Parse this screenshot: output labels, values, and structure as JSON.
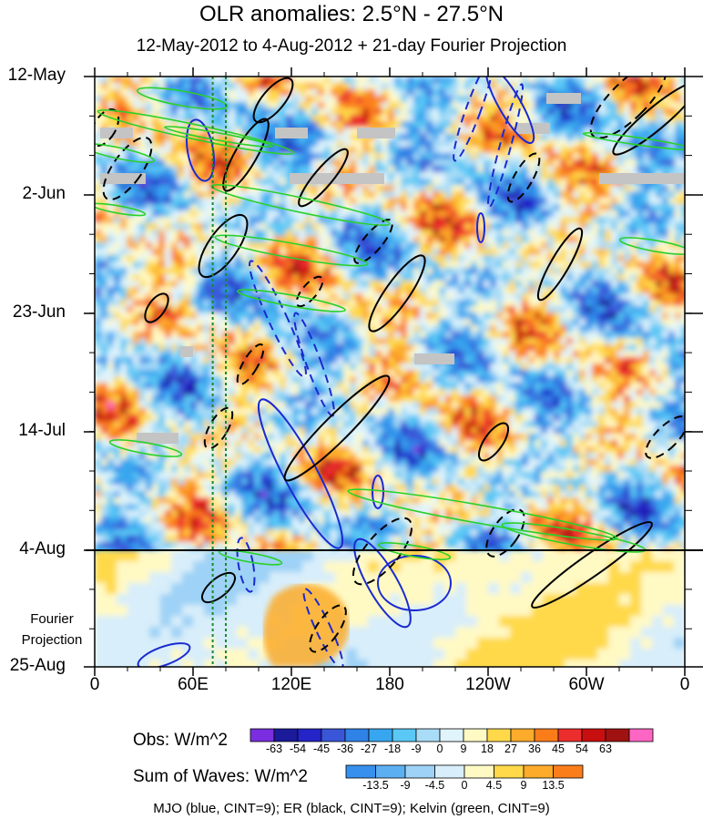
{
  "title": "OLR anomalies: 2.5°N - 27.5°N",
  "subtitle": "12-May-2012 to 4-Aug-2012 + 21-day Fourier Projection",
  "projection_label": [
    "Fourier",
    "Projection"
  ],
  "colorbar_obs": {
    "title": "Obs: W/m^2",
    "labels": [
      "-63",
      "-54",
      "-45",
      "-36",
      "-27",
      "-18",
      "-9",
      "0",
      "9",
      "18",
      "27",
      "36",
      "45",
      "54",
      "63"
    ],
    "colors": [
      "#7a2ee0",
      "#1a1a9a",
      "#2424c8",
      "#3a56d8",
      "#2f82e6",
      "#37a6ef",
      "#5ac8f5",
      "#a9dcf7",
      "#e0f4fb",
      "#fff9c4",
      "#ffd94a",
      "#fcac2a",
      "#fb7d1a",
      "#ec2d2d",
      "#c80f0f",
      "#a01212",
      "#ff66c4"
    ]
  },
  "colorbar_waves": {
    "title": "Sum of Waves: W/m^2",
    "labels": [
      "-13.5",
      "-9",
      "-4.5",
      "0",
      "4.5",
      "9",
      "13.5"
    ],
    "colors": [
      "#3890ee",
      "#5cb0f2",
      "#9ed2f6",
      "#d8eefa",
      "#fff9c4",
      "#ffd94a",
      "#fcac2a",
      "#fb7d1a"
    ]
  },
  "footer": "MJO (blue, CINT=9); ER (black, CINT=9); Kelvin (green, CINT=9)",
  "chart_data": {
    "type": "heatmap",
    "x_axis": {
      "ticks": [
        "0",
        "60E",
        "120E",
        "180",
        "120W",
        "60W",
        "0"
      ],
      "range_deg_east": [
        0,
        360
      ]
    },
    "y_axis": {
      "ticks": [
        "12-May",
        "2-Jun",
        "23-Jun",
        "14-Jul",
        "4-Aug",
        "25-Aug"
      ],
      "range": [
        "12-May-2012",
        "25-Aug-2012"
      ],
      "direction": "downward"
    },
    "observed_end": "4-Aug",
    "projection_period": [
      "4-Aug",
      "25-Aug"
    ],
    "contours": [
      {
        "wave": "MJO",
        "color": "#1a2ad0"
      },
      {
        "wave": "ER",
        "color": "#000000"
      },
      {
        "wave": "Kelvin",
        "color": "#2ad12a"
      }
    ],
    "vertical_lines_deg_east": [
      72,
      80
    ]
  }
}
